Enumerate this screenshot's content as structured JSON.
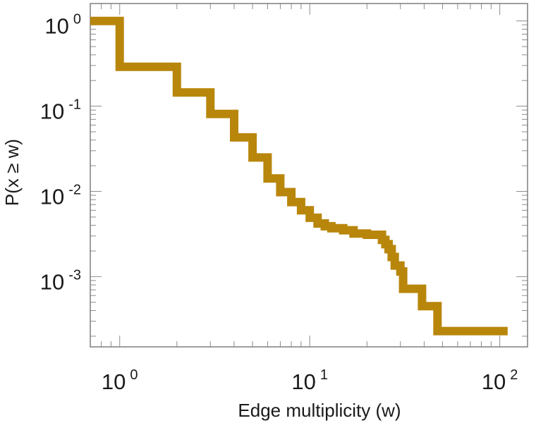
{
  "chart_data": {
    "type": "line",
    "style": "step",
    "title": "",
    "xlabel": "Edge multiplicity (w)",
    "ylabel": "P(x ≥ w)",
    "xscale": "log",
    "yscale": "log",
    "xlim": [
      0.7,
      140
    ],
    "ylim": [
      0.00015,
      1.6
    ],
    "grid": false,
    "legend": "none",
    "x_ticks": [
      {
        "value": 1,
        "base": "10",
        "exp": "0"
      },
      {
        "value": 10,
        "base": "10",
        "exp": "1"
      },
      {
        "value": 100,
        "base": "10",
        "exp": "2"
      }
    ],
    "y_ticks": [
      {
        "value": 1,
        "base": "10",
        "exp": "0"
      },
      {
        "value": 0.1,
        "base": "10",
        "exp": "-1"
      },
      {
        "value": 0.01,
        "base": "10",
        "exp": "-2"
      },
      {
        "value": 0.001,
        "base": "10",
        "exp": "-3"
      }
    ],
    "series": [
      {
        "color": "#b8860b",
        "points": [
          {
            "x": 1,
            "y": 1.0
          },
          {
            "x": 2,
            "y": 0.29
          },
          {
            "x": 3,
            "y": 0.145
          },
          {
            "x": 4,
            "y": 0.081
          },
          {
            "x": 5,
            "y": 0.043
          },
          {
            "x": 6,
            "y": 0.025
          },
          {
            "x": 7,
            "y": 0.0142
          },
          {
            "x": 8,
            "y": 0.0098
          },
          {
            "x": 9,
            "y": 0.0075
          },
          {
            "x": 10,
            "y": 0.006
          },
          {
            "x": 11,
            "y": 0.0049
          },
          {
            "x": 12,
            "y": 0.0042
          },
          {
            "x": 13,
            "y": 0.0039
          },
          {
            "x": 15,
            "y": 0.0037
          },
          {
            "x": 17,
            "y": 0.0035
          },
          {
            "x": 20,
            "y": 0.0032
          },
          {
            "x": 24,
            "y": 0.0031
          },
          {
            "x": 25,
            "y": 0.0027
          },
          {
            "x": 26,
            "y": 0.0024
          },
          {
            "x": 27,
            "y": 0.0021
          },
          {
            "x": 28,
            "y": 0.0017
          },
          {
            "x": 30,
            "y": 0.00135
          },
          {
            "x": 31,
            "y": 0.00115
          },
          {
            "x": 39,
            "y": 0.00072
          },
          {
            "x": 47,
            "y": 0.00045
          },
          {
            "x": 60,
            "y": 0.00023
          },
          {
            "x": 110,
            "y": 0.00023
          }
        ]
      }
    ]
  }
}
